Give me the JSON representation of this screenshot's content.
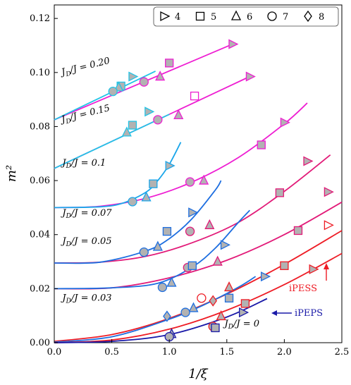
{
  "chart_data": {
    "type": "scatter",
    "xlabel": "1/ξ",
    "ylabel": "m²",
    "xlim": [
      0.0,
      2.5
    ],
    "ylim": [
      0.0,
      0.125
    ],
    "x_ticks": [
      "0.0",
      "0.5",
      "1.0",
      "1.5",
      "2.0",
      "2.5"
    ],
    "y_ticks": [
      "0.00",
      "0.02",
      "0.04",
      "0.06",
      "0.08",
      "0.10",
      "0.12"
    ],
    "legend": {
      "placement": "top-right",
      "entries": [
        {
          "marker": "triangle-right",
          "label": "4"
        },
        {
          "marker": "square",
          "label": "5"
        },
        {
          "marker": "triangle-up",
          "label": "6"
        },
        {
          "marker": "circle",
          "label": "7"
        },
        {
          "marker": "diamond",
          "label": "8"
        }
      ]
    },
    "colors": {
      "magenta": "#ee1ed2",
      "pink": "#e21a78",
      "red": "#ee1c25",
      "blue": "#1a1aa8",
      "mid_blue": "#1d6ee0",
      "sky": "#1aa6ea",
      "cyan": "#22c4e6",
      "marker_face": "#b2b2b2"
    },
    "curves": [
      {
        "label": "J_D/J = 0.20",
        "color": "#ee1ed2",
        "x": [
          0,
          1.55
        ],
        "y": [
          0.0825,
          0.1105
        ]
      },
      {
        "label": "J_D/J = 0.20 short",
        "color": "#22c4e6",
        "x": [
          0,
          0.88
        ],
        "y": [
          0.0825,
          0.1005
        ]
      },
      {
        "label": "J_D/J = 0.15",
        "color": "#ee1ed2",
        "x": [
          0,
          1.7
        ],
        "y": [
          0.0645,
          0.0985
        ]
      },
      {
        "label": "J_D/J = 0.15 short",
        "color": "#22c4e6",
        "x": [
          0,
          1.0
        ],
        "y": [
          0.0645,
          0.0845
        ]
      },
      {
        "label": "J_D/J = 0.1",
        "color": "#ee1ed2",
        "x": [
          0,
          0.4,
          0.8,
          1.2,
          1.6,
          2.0,
          2.2
        ],
        "y": [
          0.05,
          0.0505,
          0.0535,
          0.0595,
          0.0685,
          0.081,
          0.0887
        ]
      },
      {
        "label": "J_D/J = 0.1 short",
        "color": "#1aa6ea",
        "x": [
          0,
          0.4,
          0.6,
          0.8,
          0.9,
          1.0,
          1.1
        ],
        "y": [
          0.05,
          0.0503,
          0.0517,
          0.0558,
          0.06,
          0.066,
          0.0742
        ]
      },
      {
        "label": "J_D/J = 0.07",
        "color": "#e21a78",
        "x": [
          0,
          0.4,
          0.8,
          1.2,
          1.6,
          2.0,
          2.4
        ],
        "y": [
          0.0295,
          0.0298,
          0.032,
          0.037,
          0.0445,
          0.056,
          0.0695
        ]
      },
      {
        "label": "J_D/J = 0.07 short",
        "color": "#1d6ee0",
        "x": [
          0,
          0.4,
          0.8,
          1.0,
          1.2,
          1.4,
          1.45
        ],
        "y": [
          0.0295,
          0.0298,
          0.034,
          0.0385,
          0.046,
          0.0565,
          0.06
        ]
      },
      {
        "label": "J_D/J = 0.05",
        "color": "#e21a78",
        "x": [
          0,
          0.5,
          1.0,
          1.5,
          2.0,
          2.5
        ],
        "y": [
          0.02,
          0.0203,
          0.024,
          0.0305,
          0.04,
          0.052
        ]
      },
      {
        "label": "J_D/J = 0.05 short",
        "color": "#1d6ee0",
        "x": [
          0,
          0.5,
          0.9,
          1.2,
          1.4,
          1.6,
          1.7
        ],
        "y": [
          0.02,
          0.0203,
          0.022,
          0.028,
          0.035,
          0.0445,
          0.049
        ]
      },
      {
        "label": "J_D/J = 0.03",
        "color": "#ee1c25",
        "x": [
          0,
          0.5,
          1.0,
          1.5,
          2.0,
          2.5
        ],
        "y": [
          0.0005,
          0.003,
          0.009,
          0.018,
          0.029,
          0.0415
        ]
      },
      {
        "label": "J_D/J = 0.03 short",
        "color": "#1d6ee0",
        "x": [
          0,
          0.5,
          1.0,
          1.3,
          1.6,
          1.75
        ],
        "y": [
          0.0002,
          0.0022,
          0.0087,
          0.014,
          0.0205,
          0.0245
        ]
      },
      {
        "label": "iPESS",
        "color": "#ee1c25",
        "x": [
          0,
          0.5,
          1.0,
          1.5,
          2.0,
          2.5
        ],
        "y": [
          0.0,
          0.001,
          0.005,
          0.012,
          0.0215,
          0.033
        ]
      },
      {
        "label": "iPEPS",
        "color": "#1a1aa8",
        "x": [
          0,
          0.5,
          1.0,
          1.5,
          1.85
        ],
        "y": [
          0.0,
          0.0005,
          0.003,
          0.0095,
          0.0163
        ]
      }
    ],
    "points": [
      {
        "m": "tri-right",
        "x": 1.55,
        "y": 0.1105,
        "c": "#ee1ed2",
        "f": "#b2b2b2"
      },
      {
        "m": "square",
        "x": 1.0,
        "y": 0.1035,
        "c": "#ee1ed2",
        "f": "#b2b2b2"
      },
      {
        "m": "tri-up",
        "x": 0.92,
        "y": 0.0985,
        "c": "#ee1ed2",
        "f": "#b2b2b2"
      },
      {
        "m": "circle",
        "x": 0.78,
        "y": 0.0965,
        "c": "#ee1ed2",
        "f": "#b2b2b2"
      },
      {
        "m": "tri-right",
        "x": 0.68,
        "y": 0.0985,
        "c": "#22c4e6",
        "f": "#b2b2b2"
      },
      {
        "m": "square",
        "x": 0.58,
        "y": 0.095,
        "c": "#22c4e6",
        "f": "#b2b2b2"
      },
      {
        "m": "tri-up",
        "x": 0.56,
        "y": 0.0945,
        "c": "#22c4e6",
        "f": "#b2b2b2"
      },
      {
        "m": "circle",
        "x": 0.51,
        "y": 0.093,
        "c": "#22c4e6",
        "f": "#b2b2b2"
      },
      {
        "m": "tri-right",
        "x": 1.7,
        "y": 0.0985,
        "c": "#ee1ed2",
        "f": "#b2b2b2"
      },
      {
        "m": "square",
        "x": 1.22,
        "y": 0.0913,
        "c": "#ee1ed2",
        "f": "none"
      },
      {
        "m": "tri-up",
        "x": 1.08,
        "y": 0.0842,
        "c": "#ee1ed2",
        "f": "#b2b2b2"
      },
      {
        "m": "circle",
        "x": 0.9,
        "y": 0.0825,
        "c": "#ee1ed2",
        "f": "#b2b2b2"
      },
      {
        "m": "tri-right",
        "x": 0.82,
        "y": 0.0855,
        "c": "#22c4e6",
        "f": "#b2b2b2"
      },
      {
        "m": "square",
        "x": 0.68,
        "y": 0.0805,
        "c": "#22c4e6",
        "f": "#b2b2b2"
      },
      {
        "m": "tri-up",
        "x": 0.63,
        "y": 0.0778,
        "c": "#22c4e6",
        "f": "#b2b2b2"
      },
      {
        "m": "tri-right",
        "x": 2.0,
        "y": 0.0815,
        "c": "#ee1ed2",
        "f": "#b2b2b2"
      },
      {
        "m": "square",
        "x": 1.8,
        "y": 0.0732,
        "c": "#ee1ed2",
        "f": "#b2b2b2"
      },
      {
        "m": "tri-up",
        "x": 1.3,
        "y": 0.06,
        "c": "#ee1ed2",
        "f": "#b2b2b2"
      },
      {
        "m": "circle",
        "x": 1.18,
        "y": 0.0595,
        "c": "#ee1ed2",
        "f": "#b2b2b2"
      },
      {
        "m": "tri-right",
        "x": 1.0,
        "y": 0.0655,
        "c": "#1aa6ea",
        "f": "#b2b2b2"
      },
      {
        "m": "square",
        "x": 0.86,
        "y": 0.0588,
        "c": "#1aa6ea",
        "f": "#b2b2b2"
      },
      {
        "m": "tri-up",
        "x": 0.8,
        "y": 0.0538,
        "c": "#1aa6ea",
        "f": "#b2b2b2"
      },
      {
        "m": "circle",
        "x": 0.68,
        "y": 0.0522,
        "c": "#1aa6ea",
        "f": "#b2b2b2"
      },
      {
        "m": "tri-right",
        "x": 2.2,
        "y": 0.0672,
        "c": "#e21a78",
        "f": "#b2b2b2"
      },
      {
        "m": "square",
        "x": 1.96,
        "y": 0.0555,
        "c": "#e21a78",
        "f": "#b2b2b2"
      },
      {
        "m": "tri-up",
        "x": 1.35,
        "y": 0.0435,
        "c": "#e21a78",
        "f": "#b2b2b2"
      },
      {
        "m": "circle",
        "x": 1.18,
        "y": 0.0412,
        "c": "#e21a78",
        "f": "#b2b2b2"
      },
      {
        "m": "tri-right",
        "x": 1.2,
        "y": 0.0482,
        "c": "#1d6ee0",
        "f": "#b2b2b2"
      },
      {
        "m": "square",
        "x": 0.98,
        "y": 0.0412,
        "c": "#1d6ee0",
        "f": "#b2b2b2"
      },
      {
        "m": "tri-up",
        "x": 0.9,
        "y": 0.0355,
        "c": "#1d6ee0",
        "f": "#b2b2b2"
      },
      {
        "m": "circle",
        "x": 0.78,
        "y": 0.0335,
        "c": "#1d6ee0",
        "f": "#b2b2b2"
      },
      {
        "m": "tri-right",
        "x": 2.38,
        "y": 0.0558,
        "c": "#e21a78",
        "f": "#b2b2b2"
      },
      {
        "m": "square",
        "x": 2.12,
        "y": 0.0415,
        "c": "#e21a78",
        "f": "#b2b2b2"
      },
      {
        "m": "tri-up",
        "x": 1.42,
        "y": 0.03,
        "c": "#e21a78",
        "f": "#b2b2b2"
      },
      {
        "m": "circle",
        "x": 1.16,
        "y": 0.0278,
        "c": "#e21a78",
        "f": "#b2b2b2"
      },
      {
        "m": "tri-right",
        "x": 1.48,
        "y": 0.0362,
        "c": "#1d6ee0",
        "f": "#b2b2b2"
      },
      {
        "m": "square",
        "x": 1.2,
        "y": 0.0285,
        "c": "#1d6ee0",
        "f": "#b2b2b2"
      },
      {
        "m": "tri-up",
        "x": 1.02,
        "y": 0.0222,
        "c": "#1d6ee0",
        "f": "#b2b2b2"
      },
      {
        "m": "circle",
        "x": 0.94,
        "y": 0.0205,
        "c": "#1d6ee0",
        "f": "#b2b2b2"
      },
      {
        "m": "tri-right",
        "x": 2.38,
        "y": 0.0435,
        "c": "#ee1c25",
        "f": "none"
      },
      {
        "m": "tri-right",
        "x": 2.25,
        "y": 0.0272,
        "c": "#ee1c25",
        "f": "#b2b2b2"
      },
      {
        "m": "square",
        "x": 2.0,
        "y": 0.0285,
        "c": "#ee1c25",
        "f": "#b2b2b2"
      },
      {
        "m": "square",
        "x": 1.66,
        "y": 0.0145,
        "c": "#ee1c25",
        "f": "#b2b2b2"
      },
      {
        "m": "tri-up",
        "x": 1.52,
        "y": 0.0205,
        "c": "#ee1c25",
        "f": "#b2b2b2"
      },
      {
        "m": "tri-up",
        "x": 1.45,
        "y": 0.0098,
        "c": "#ee1c25",
        "f": "#b2b2b2"
      },
      {
        "m": "circle",
        "x": 1.28,
        "y": 0.0165,
        "c": "#ee1c25",
        "f": "none"
      },
      {
        "m": "diamond",
        "x": 1.38,
        "y": 0.0155,
        "c": "#ee1c25",
        "f": "#b2b2b2"
      },
      {
        "m": "circle",
        "x": 1.38,
        "y": 0.006,
        "c": "#ee1c25",
        "f": "#b2b2b2"
      },
      {
        "m": "tri-right",
        "x": 1.83,
        "y": 0.0245,
        "c": "#1d6ee0",
        "f": "#b2b2b2"
      },
      {
        "m": "square",
        "x": 1.52,
        "y": 0.0165,
        "c": "#1d6ee0",
        "f": "#b2b2b2"
      },
      {
        "m": "tri-up",
        "x": 1.21,
        "y": 0.0128,
        "c": "#1d6ee0",
        "f": "#b2b2b2"
      },
      {
        "m": "circle",
        "x": 1.14,
        "y": 0.0112,
        "c": "#1d6ee0",
        "f": "#b2b2b2"
      },
      {
        "m": "diamond",
        "x": 0.98,
        "y": 0.0098,
        "c": "#1d6ee0",
        "f": "#b2b2b2"
      },
      {
        "m": "tri-right",
        "x": 1.64,
        "y": 0.0112,
        "c": "#1a1aa8",
        "f": "#b2b2b2"
      },
      {
        "m": "square",
        "x": 1.4,
        "y": 0.0055,
        "c": "#1a1aa8",
        "f": "#b2b2b2"
      },
      {
        "m": "tri-up",
        "x": 1.02,
        "y": 0.0032,
        "c": "#1a1aa8",
        "f": "#b2b2b2"
      },
      {
        "m": "circle",
        "x": 1.0,
        "y": 0.0022,
        "c": "#1a1aa8",
        "f": "#b2b2b2"
      }
    ],
    "annotations": [
      {
        "text": "J_D/J = 0.20",
        "x": 0.07,
        "y": 0.099,
        "rot": -14
      },
      {
        "text": "J_D/J = 0.15",
        "x": 0.07,
        "y": 0.0815,
        "rot": -14
      },
      {
        "text": "J_D/J = 0.1",
        "x": 0.07,
        "y": 0.0655,
        "rot": 0
      },
      {
        "text": "J_D/J = 0.07",
        "x": 0.07,
        "y": 0.047,
        "rot": 0
      },
      {
        "text": "J_D/J = 0.05",
        "x": 0.07,
        "y": 0.0365,
        "rot": 0
      },
      {
        "text": "J_D/J = 0.03",
        "x": 0.07,
        "y": 0.0155,
        "rot": 0
      },
      {
        "text": "J_D/J = 0",
        "x": 1.48,
        "y": 0.006,
        "rot": 0
      }
    ],
    "labels": {
      "ipeps": "iPEPS",
      "ipess": "iPESS"
    }
  }
}
